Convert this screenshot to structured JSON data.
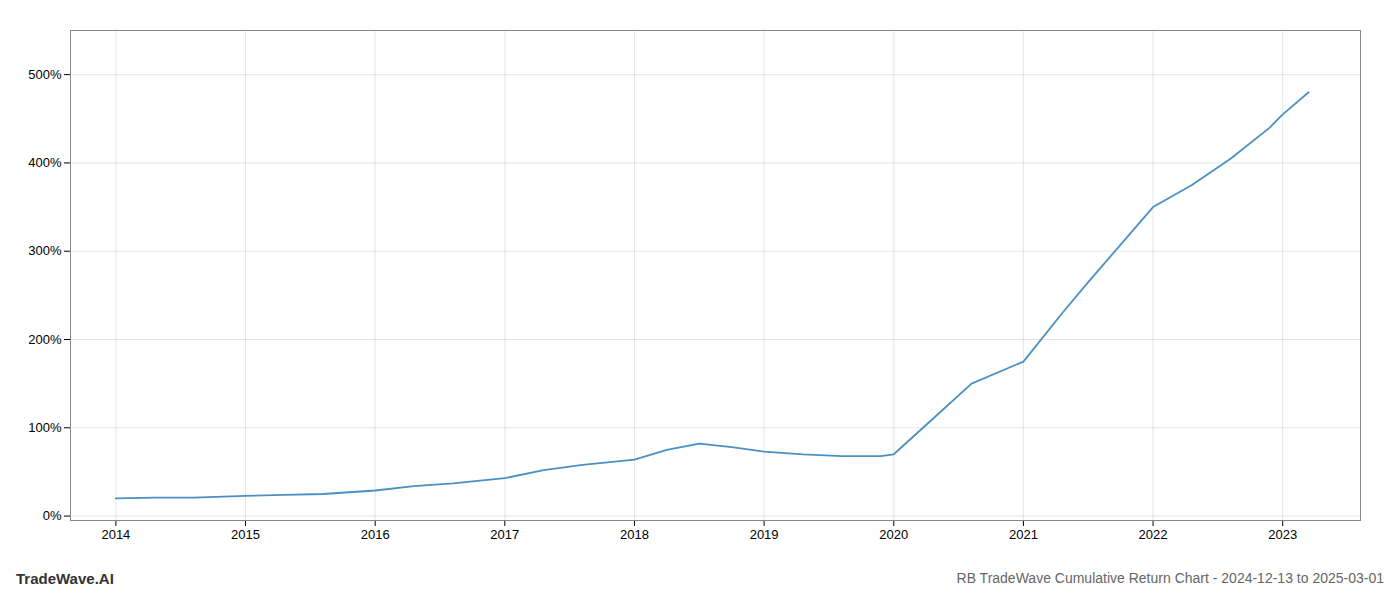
{
  "chart_data": {
    "type": "line",
    "title": "RB TradeWave Cumulative Return Chart - 2024-12-13 to 2025-03-01",
    "annotations": [
      "TradeWave.AI"
    ],
    "x": [
      2014.0,
      2014.3,
      2014.6,
      2015.0,
      2015.3,
      2015.6,
      2016.0,
      2016.3,
      2016.6,
      2017.0,
      2017.3,
      2017.6,
      2018.0,
      2018.25,
      2018.5,
      2018.75,
      2019.0,
      2019.3,
      2019.6,
      2019.9,
      2020.0,
      2020.3,
      2020.6,
      2021.0,
      2021.3,
      2021.5,
      2022.0,
      2022.3,
      2022.6,
      2022.9,
      2023.0,
      2023.2
    ],
    "values": [
      20,
      21,
      21,
      23,
      24,
      25,
      29,
      34,
      37,
      43,
      52,
      58,
      64,
      75,
      82,
      78,
      73,
      70,
      68,
      68,
      70,
      110,
      150,
      175,
      230,
      265,
      350,
      375,
      405,
      440,
      455,
      480
    ],
    "color": "#4a90c4",
    "xlim": [
      2013.65,
      2023.6
    ],
    "ylim": [
      -5,
      550
    ],
    "xticks": [
      2014,
      2015,
      2016,
      2017,
      2018,
      2019,
      2020,
      2021,
      2022,
      2023
    ],
    "yticks": [
      {
        "value": 0,
        "label": "0%"
      },
      {
        "value": 100,
        "label": "100%"
      },
      {
        "value": 200,
        "label": "200%"
      },
      {
        "value": 300,
        "label": "300%"
      },
      {
        "value": 400,
        "label": "400%"
      },
      {
        "value": 500,
        "label": "500%"
      }
    ],
    "grid": true
  }
}
